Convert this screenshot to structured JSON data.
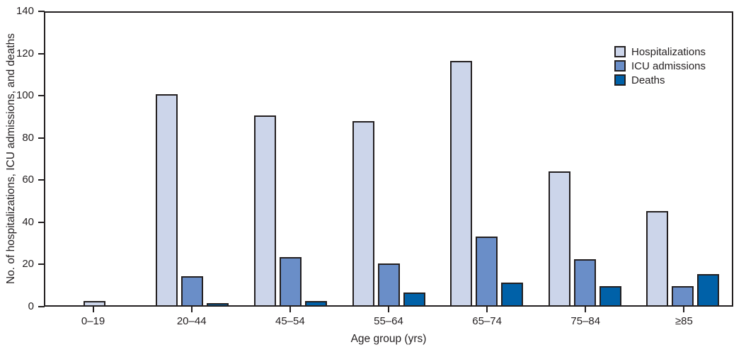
{
  "chart_data": {
    "type": "bar",
    "categories": [
      "0–19",
      "20–44",
      "45–54",
      "55–64",
      "65–74",
      "75–84",
      "≥85"
    ],
    "series": [
      {
        "name": "Hospitalizations",
        "color": "#ccd5ea",
        "values": [
          2,
          101,
          91,
          88,
          117,
          64,
          45
        ]
      },
      {
        "name": "ICU admissions",
        "color": "#6a8ec8",
        "values": [
          0,
          14,
          23,
          20,
          33,
          22,
          9
        ]
      },
      {
        "name": "Deaths",
        "color": "#0061a8",
        "values": [
          0,
          1,
          2,
          6,
          11,
          9,
          15
        ]
      }
    ],
    "title": "",
    "xlabel": "Age group (yrs)",
    "ylabel": "No. of hospitalizations, ICU admissions, and deaths",
    "ylim": [
      0,
      140
    ],
    "yticks": [
      0,
      20,
      40,
      60,
      80,
      100,
      120,
      140
    ],
    "grid": false,
    "legend_position": "inside-top-right",
    "axis_color": "#231f20",
    "background": "#ffffff"
  }
}
